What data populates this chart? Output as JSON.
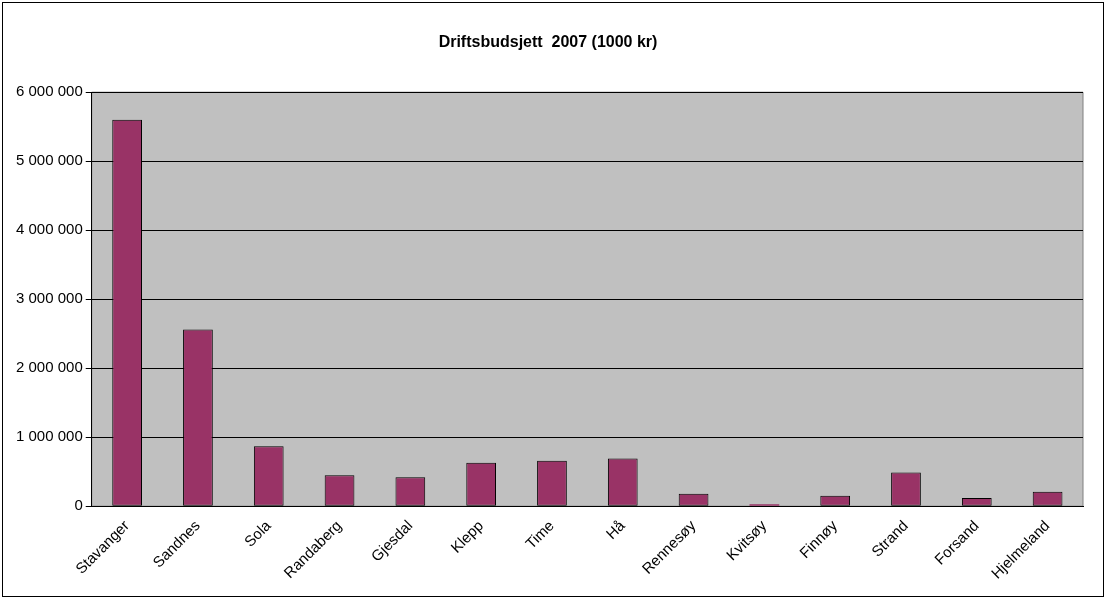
{
  "chart_data": {
    "type": "bar",
    "title": "Driftsbudsjett  2007 (1000 kr)",
    "categories": [
      "Stavanger",
      "Sandnes",
      "Sola",
      "Randaberg",
      "Gjesdal",
      "Klepp",
      "Time",
      "Hå",
      "Rennesøy",
      "Kvitsøy",
      "Finnøy",
      "Strand",
      "Forsand",
      "Hjelmeland"
    ],
    "values": [
      5600000,
      2560000,
      870000,
      450000,
      420000,
      630000,
      660000,
      690000,
      180000,
      30000,
      150000,
      490000,
      120000,
      210000
    ],
    "color": "#993366",
    "ylim": [
      0,
      6000000
    ],
    "yticks": [
      {
        "value": 0,
        "label": "0"
      },
      {
        "value": 1000000,
        "label": "1 000 000"
      },
      {
        "value": 2000000,
        "label": "2 000 000"
      },
      {
        "value": 3000000,
        "label": "3 000 000"
      },
      {
        "value": 4000000,
        "label": "4 000 000"
      },
      {
        "value": 5000000,
        "label": "5 000 000"
      },
      {
        "value": 6000000,
        "label": "6 000 000"
      }
    ],
    "grid": "y",
    "legend": false
  }
}
